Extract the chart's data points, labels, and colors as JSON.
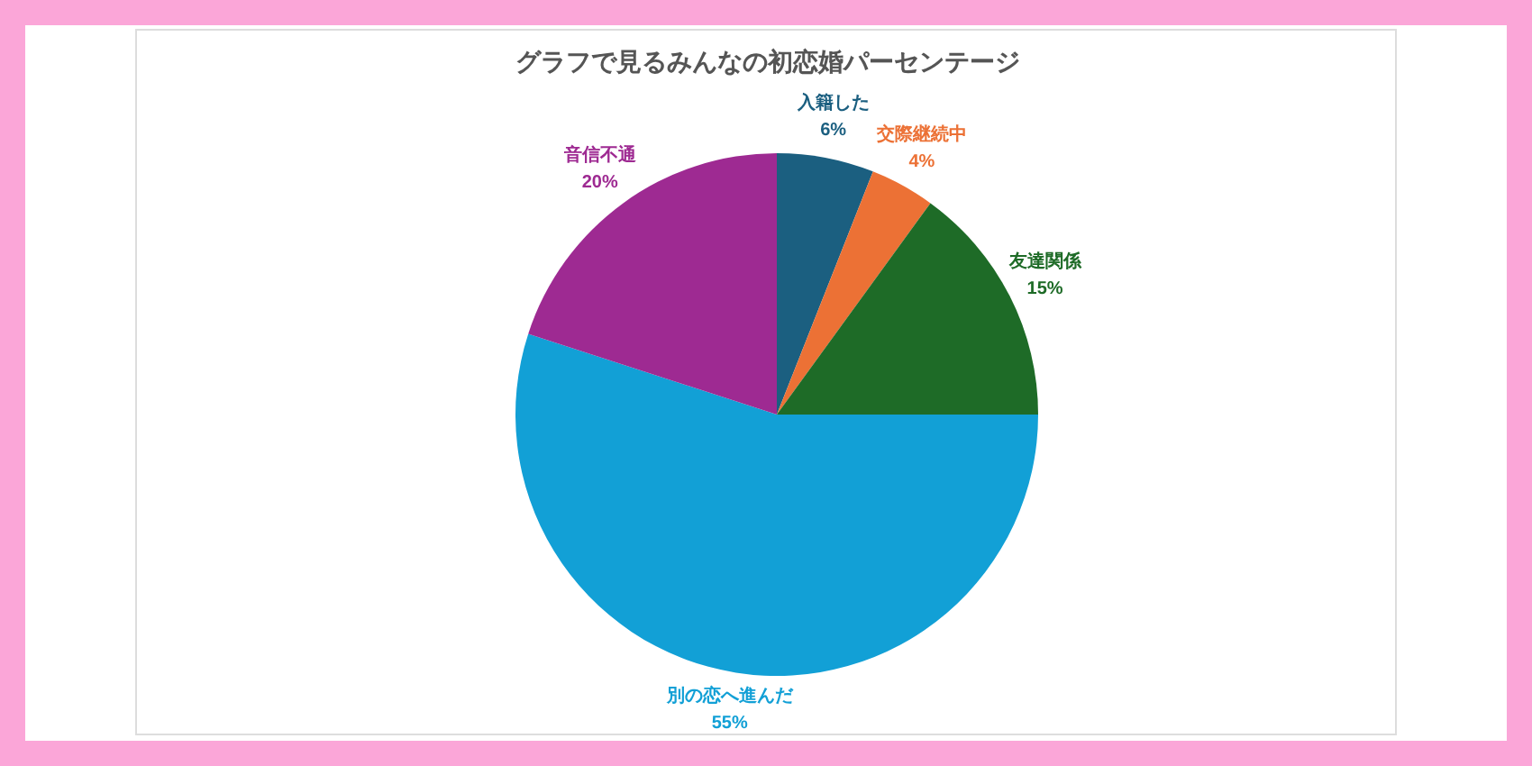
{
  "chart_data": {
    "type": "pie",
    "title": "グラフで見るみんなの初恋婚パーセンテージ",
    "categories": [
      "入籍した",
      "交際継続中",
      "友達関係",
      "別の恋へ進んだ",
      "音信不通"
    ],
    "values": [
      6,
      4,
      15,
      55,
      20
    ],
    "value_labels": [
      "6%",
      "4%",
      "15%",
      "55%",
      "20%"
    ],
    "colors": [
      "#1b5f80",
      "#ec7135",
      "#1e6b27",
      "#12a0d6",
      "#9e2a92"
    ],
    "legend": false
  }
}
